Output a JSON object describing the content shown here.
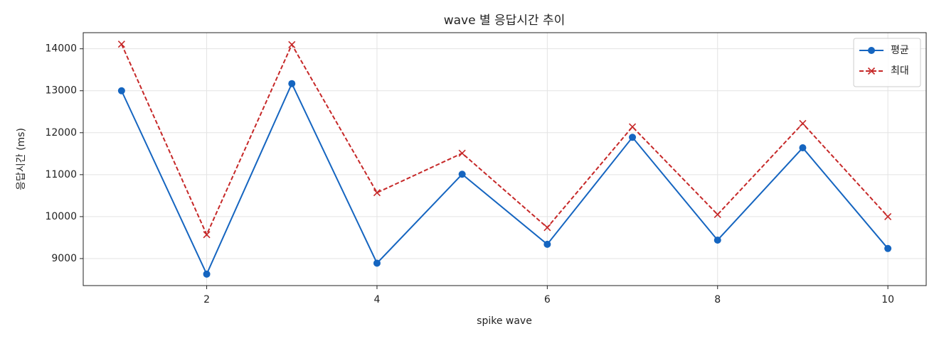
{
  "chart_data": {
    "type": "line",
    "title": "wave 별 응답시간 추이",
    "xlabel": "spike wave",
    "ylabel": "응답시간 (ms)",
    "x": [
      1,
      2,
      3,
      4,
      5,
      6,
      7,
      8,
      9,
      10
    ],
    "series": [
      {
        "name": "평균",
        "color": "#1565c0",
        "marker": "o",
        "dashed": false,
        "values": [
          13000,
          8630,
          13170,
          8890,
          11010,
          9340,
          11890,
          9440,
          11640,
          9240
        ]
      },
      {
        "name": "최대",
        "color": "#c62828",
        "marker": "x",
        "dashed": true,
        "values": [
          14110,
          9570,
          14100,
          10570,
          11510,
          9740,
          12140,
          10050,
          12220,
          10000
        ]
      }
    ],
    "xlim": [
      0.55,
      10.45
    ],
    "ylim": [
      8356,
      14384
    ],
    "xticks": [
      2,
      4,
      6,
      8,
      10
    ],
    "yticks": [
      9000,
      10000,
      11000,
      12000,
      13000,
      14000
    ],
    "grid": true,
    "legend": "upper right"
  }
}
